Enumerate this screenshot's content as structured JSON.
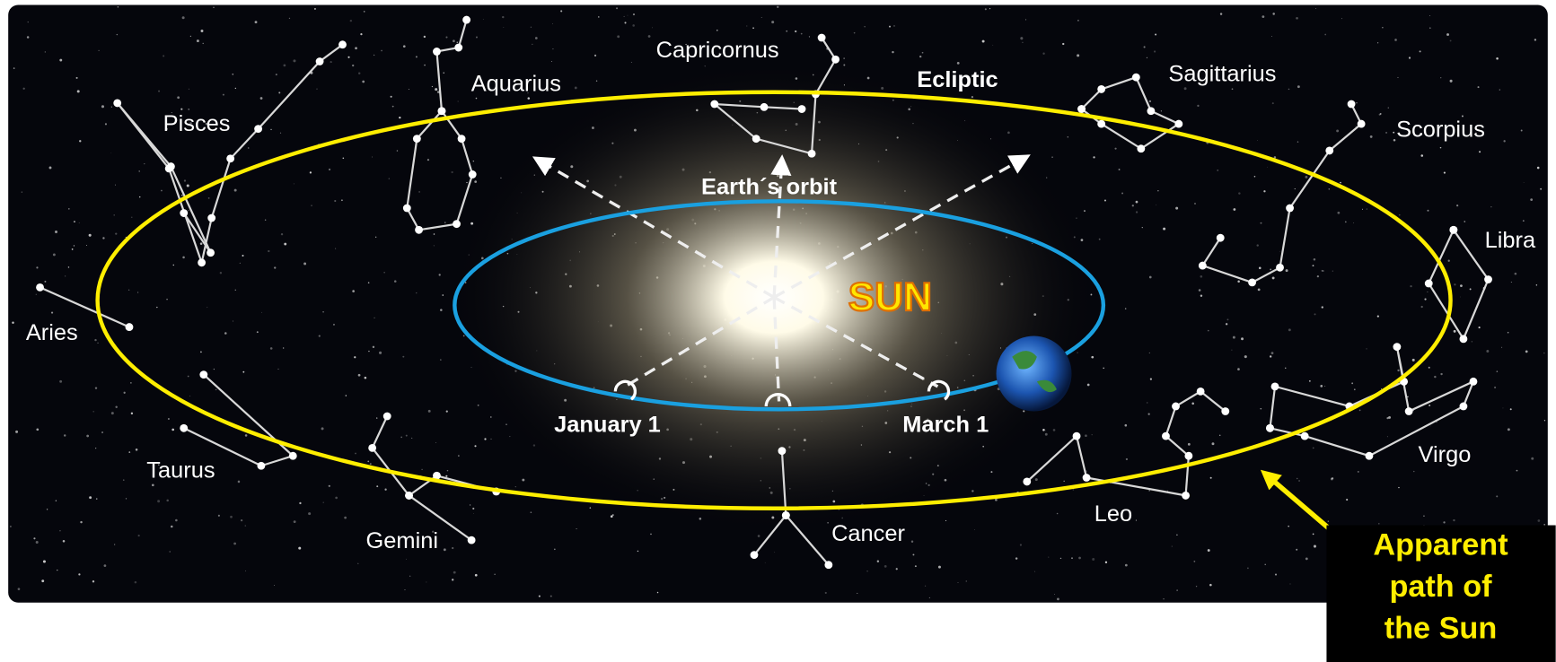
{
  "diagram": {
    "constellations": [
      "Capricornus",
      "Aquarius",
      "Pisces",
      "Sagittarius",
      "Scorpius",
      "Libra",
      "Aries",
      "Taurus",
      "Gemini",
      "Cancer",
      "Leo",
      "Virgo"
    ],
    "ecliptic_label": "Ecliptic",
    "orbit_label": "Earth´s orbit",
    "sun_label": "SUN",
    "dates": [
      "January 1",
      "March 1"
    ],
    "callout": [
      "Apparent",
      "path of",
      "the Sun"
    ]
  }
}
